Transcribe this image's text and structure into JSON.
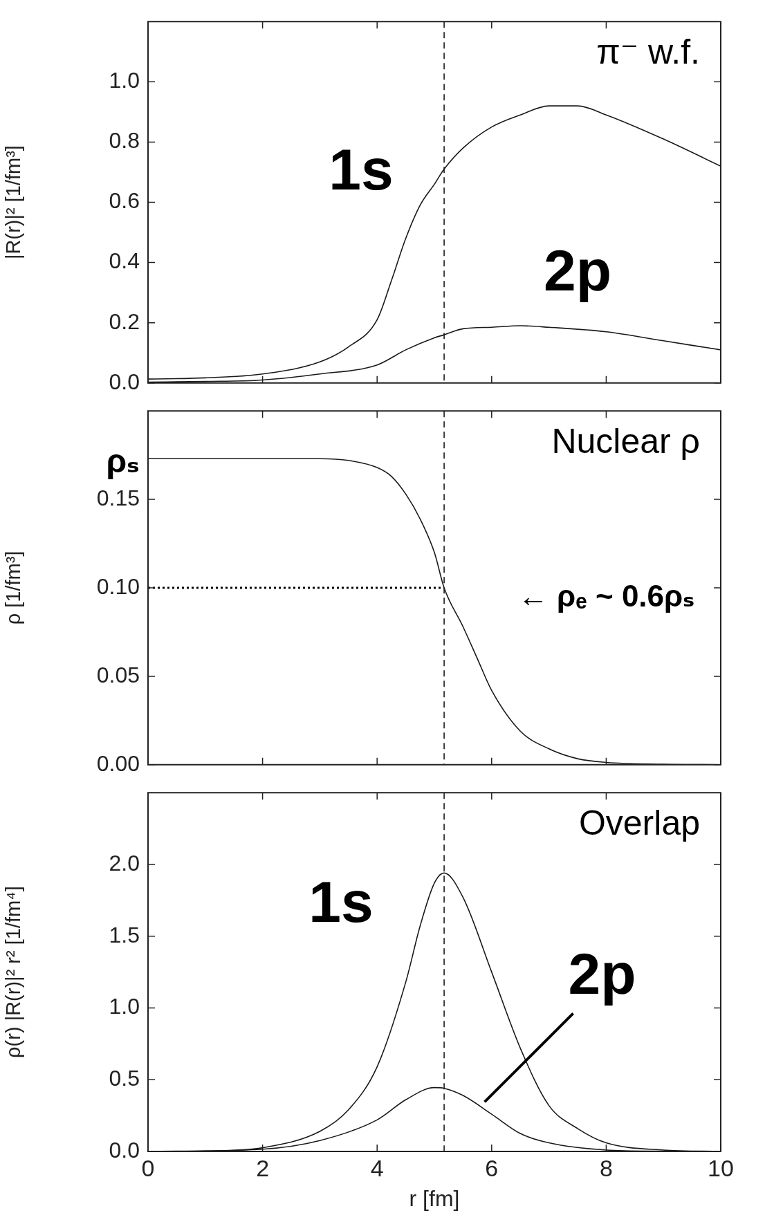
{
  "chart_data": [
    {
      "type": "line",
      "title": "π⁻ w.f.",
      "ylabel": "|R(r)|² [1/fm³]",
      "xlim": [
        0,
        10
      ],
      "xticks": [
        0,
        2,
        4,
        6,
        8,
        10
      ],
      "ylim": [
        0,
        1.2
      ],
      "yticks": [
        {
          "value": 0,
          "label": "0.0"
        },
        {
          "value": 0.2,
          "label": "0.2"
        },
        {
          "value": 0.4,
          "label": "0.4"
        },
        {
          "value": 0.6,
          "label": "0.6"
        },
        {
          "value": 0.8,
          "label": "0.8"
        },
        {
          "value": 1,
          "label": "1.0"
        }
      ],
      "tick_labels": "y",
      "grid": false,
      "legend": false,
      "series": [
        {
          "color": "#1a1a1a",
          "line_style": "solid",
          "x": [
            0,
            1,
            2,
            3,
            3.5,
            4,
            4.25,
            4.5,
            4.75,
            5,
            5.17,
            5.5,
            6,
            6.5,
            7,
            7.5,
            8,
            9,
            10
          ],
          "values": [
            0.013,
            0.017,
            0.03,
            0.07,
            0.12,
            0.21,
            0.34,
            0.48,
            0.59,
            0.66,
            0.71,
            0.78,
            0.85,
            0.89,
            0.92,
            0.92,
            0.89,
            0.81,
            0.72
          ]
        },
        {
          "color": "#1a1a1a",
          "line_style": "solid",
          "x": [
            0,
            1,
            2,
            3,
            4,
            4.5,
            5,
            5.17,
            5.5,
            6,
            6.5,
            7,
            8,
            9,
            10
          ],
          "values": [
            0.003,
            0.005,
            0.01,
            0.03,
            0.06,
            0.11,
            0.15,
            0.16,
            0.18,
            0.185,
            0.19,
            0.185,
            0.17,
            0.14,
            0.11
          ]
        }
      ],
      "ref_lines": [
        {
          "axis": "x",
          "value": 5.17,
          "line_style": "dashed",
          "color": "#1a1a1a"
        }
      ],
      "annotations": [
        "1s",
        "2p"
      ]
    },
    {
      "type": "line",
      "title": "Nuclear ρ",
      "ylabel": "ρ [1/fm³]",
      "xlim": [
        0,
        10
      ],
      "xticks": [
        0,
        2,
        4,
        6,
        8,
        10
      ],
      "ylim": [
        0,
        0.2
      ],
      "yticks": [
        {
          "value": 0,
          "label": "0.00"
        },
        {
          "value": 0.05,
          "label": "0.05"
        },
        {
          "value": 0.1,
          "label": "0.10"
        },
        {
          "value": 0.15,
          "label": "0.15"
        }
      ],
      "tick_labels": "y",
      "grid": false,
      "legend": false,
      "series": [
        {
          "color": "#1a1a1a",
          "line_style": "solid",
          "x": [
            0,
            1,
            2,
            3,
            3.5,
            4,
            4.25,
            4.5,
            4.75,
            5,
            5.17,
            5.5,
            5.75,
            6,
            6.5,
            7,
            7.5,
            8,
            9,
            10
          ],
          "values": [
            0.173,
            0.173,
            0.173,
            0.173,
            0.172,
            0.168,
            0.163,
            0.153,
            0.139,
            0.12,
            0.1,
            0.078,
            0.06,
            0.042,
            0.019,
            0.009,
            0.0034,
            0.0013,
            0.0003,
            0
          ]
        },
        {
          "color": "#000000",
          "line_style": "dotted",
          "x": [
            0,
            5.17
          ],
          "values": [
            0.1,
            0.1
          ]
        }
      ],
      "ref_lines": [
        {
          "axis": "x",
          "value": 5.17,
          "line_style": "dashed",
          "color": "#1a1a1a"
        }
      ],
      "annotations": [
        "ρₛ",
        "← ρₑ ~ 0.6ρₛ"
      ]
    },
    {
      "type": "line",
      "title": "Overlap",
      "xlabel": "r [fm]",
      "ylabel": "ρ(r) |R(r)|² r² [1/fm⁴]",
      "xlim": [
        0,
        10
      ],
      "xticks": [
        0,
        2,
        4,
        6,
        8,
        10
      ],
      "ylim": [
        0,
        2.5
      ],
      "yticks": [
        {
          "value": 0,
          "label": "0.0"
        },
        {
          "value": 0.5,
          "label": "0.5"
        },
        {
          "value": 1,
          "label": "1.0"
        },
        {
          "value": 1.5,
          "label": "1.5"
        },
        {
          "value": 2,
          "label": "2.0"
        }
      ],
      "grid": false,
      "legend": false,
      "series": [
        {
          "color": "#1a1a1a",
          "line_style": "solid",
          "x": [
            0,
            1,
            2,
            3,
            3.5,
            4,
            4.5,
            4.75,
            5,
            5.17,
            5.5,
            6,
            6.5,
            7,
            7.5,
            8,
            9,
            10
          ],
          "values": [
            0,
            0.003,
            0.026,
            0.14,
            0.29,
            0.59,
            1.18,
            1.57,
            1.87,
            1.94,
            1.77,
            1.25,
            0.72,
            0.32,
            0.16,
            0.06,
            0.01,
            0
          ]
        },
        {
          "color": "#1a1a1a",
          "line_style": "solid",
          "x": [
            0,
            2,
            3,
            4,
            4.5,
            5,
            5.17,
            5.5,
            6,
            6.5,
            7,
            8,
            9,
            10
          ],
          "values": [
            0,
            0.016,
            0.076,
            0.22,
            0.36,
            0.445,
            0.44,
            0.39,
            0.26,
            0.125,
            0.06,
            0.01,
            0.002,
            0
          ]
        }
      ],
      "ref_lines": [
        {
          "axis": "x",
          "value": 5.17,
          "line_style": "dashed",
          "color": "#1a1a1a"
        }
      ],
      "annotations": [
        "1s",
        "2p"
      ]
    }
  ]
}
